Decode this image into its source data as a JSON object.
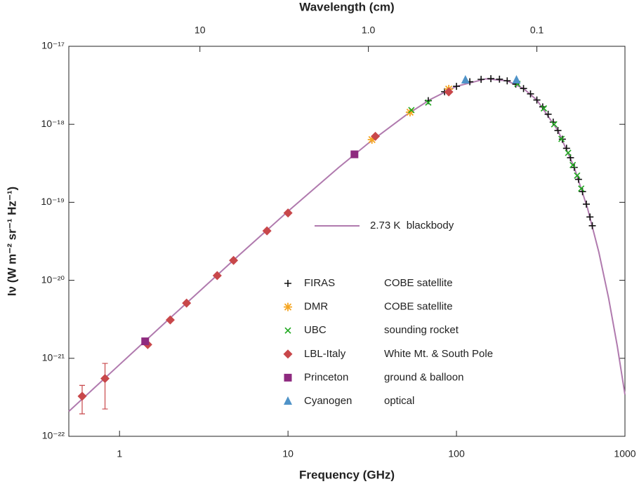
{
  "chart_data": {
    "type": "scatter",
    "title": "Wavelength (cm)",
    "x_label": "Frequency (GHz)",
    "y_label": "Iν (W m⁻² sr⁻¹ Hz⁻¹)",
    "xscale": "log",
    "yscale": "log",
    "x2scale": "log",
    "xlim": [
      0.5,
      1000
    ],
    "xticks": [
      1,
      10,
      100,
      1000
    ],
    "x2lim": [
      60,
      0.03
    ],
    "x2ticks": [
      10,
      {
        "value": 1,
        "label": "1.0"
      },
      0.1
    ],
    "ylim": [
      1e-22,
      1e-17
    ],
    "yticks": [
      {
        "value": 1e-22,
        "label": "10⁻²²"
      },
      {
        "value": 1e-21,
        "label": "10⁻²¹"
      },
      {
        "value": 1e-20,
        "label": "10⁻²⁰"
      },
      {
        "value": 1e-19,
        "label": "10⁻¹⁹"
      },
      {
        "value": 1e-18,
        "label": "10⁻¹⁸"
      },
      {
        "value": 1e-17,
        "label": "10⁻¹⁷"
      }
    ],
    "series": [
      {
        "name": "2.73 K  blackbody",
        "marker": "line",
        "color": "#b07aae",
        "x": [
          0.5,
          1,
          2,
          5,
          10,
          20,
          30,
          50,
          70,
          100,
          150,
          200,
          250,
          300,
          400,
          500,
          600,
          700,
          800,
          900,
          1000
        ],
        "values": [
          2.085e-22,
          8.3e-22,
          3.292e-21,
          2.003e-20,
          7.66e-20,
          2.796e-19,
          5.723e-19,
          1.307e-18,
          2.084e-18,
          3.067e-18,
          3.831e-18,
          3.608e-18,
          2.874e-18,
          2.047e-18,
          8.33e-19,
          2.803e-19,
          8.35e-20,
          2.287e-20,
          5.885e-21,
          1.445e-21,
          3.42e-22
        ]
      },
      {
        "name": "FIRAS",
        "description": "COBE satellite",
        "marker": "plus",
        "color": "#111111",
        "x": [
          68,
          85,
          100,
          120,
          140,
          160,
          180,
          200,
          225,
          250,
          275,
          300,
          325,
          350,
          375,
          400,
          425,
          450,
          475,
          500,
          530,
          560,
          590,
          620,
          640
        ],
        "values": [
          2.008e-18,
          2.616e-18,
          3.067e-18,
          3.512e-18,
          3.769e-18,
          3.852e-18,
          3.787e-18,
          3.608e-18,
          3.275e-18,
          2.874e-18,
          2.454e-18,
          2.047e-18,
          1.674e-18,
          1.346e-18,
          1.066e-18,
          8.33e-19,
          6.44e-19,
          4.925e-19,
          3.731e-19,
          2.803e-19,
          1.97e-19,
          1.37e-19,
          9.47e-20,
          6.48e-20,
          5.01e-20
        ]
      },
      {
        "name": "DMR",
        "description": "COBE satellite",
        "marker": "asterisk",
        "color": "#f5a623",
        "x": [
          31.5,
          53,
          90
        ],
        "values": [
          6.37e-19,
          1.43e-18,
          2.83e-18
        ]
      },
      {
        "name": "UBC",
        "description": "sounding rocket",
        "marker": "x",
        "color": "#1fa81f",
        "x": [
          54,
          68,
          230,
          330,
          380,
          420,
          460,
          490,
          520,
          550
        ],
        "values": [
          1.52e-18,
          1.9e-18,
          3.3e-18,
          1.6e-18,
          1e-18,
          6.5e-19,
          4.3e-19,
          3e-19,
          2.2e-19,
          1.5e-19
        ]
      },
      {
        "name": "LBL-Italy",
        "description": "White Mt. & South Pole",
        "marker": "diamond",
        "color": "#c8474a",
        "x": [
          0.6,
          0.82,
          1.47,
          2.0,
          2.5,
          3.8,
          4.75,
          7.5,
          10,
          33,
          90
        ],
        "values": [
          3.26e-22,
          5.5e-22,
          1.5e-21,
          3.1e-21,
          5.1e-21,
          1.15e-20,
          1.8e-20,
          4.3e-20,
          7.3e-20,
          7e-19,
          2.6e-18
        ],
        "err_low": [
          1.94e-22,
          2.24e-22,
          null,
          null,
          null,
          null,
          null,
          null,
          null,
          null,
          null
        ],
        "err_high": [
          4.5e-22,
          8.6e-22,
          null,
          null,
          null,
          null,
          null,
          null,
          null,
          null,
          null
        ]
      },
      {
        "name": "Princeton",
        "description": "ground & balloon",
        "marker": "square",
        "color": "#8e2a7f",
        "x": [
          1.42,
          24.8
        ],
        "values": [
          1.65e-21,
          4.12e-19
        ]
      },
      {
        "name": "Cyanogen",
        "description": "optical",
        "marker": "triangle",
        "color": "#4f93c8",
        "x": [
          113,
          227
        ],
        "values": [
          3.7e-18,
          3.7e-18
        ]
      }
    ]
  }
}
